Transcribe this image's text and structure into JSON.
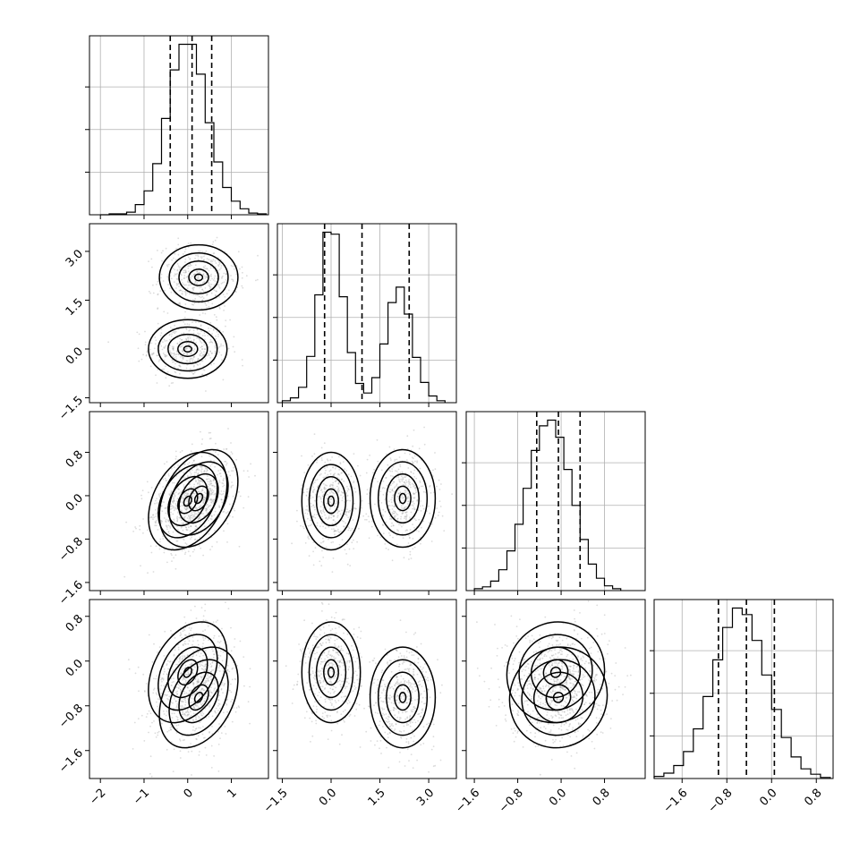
{
  "chart_data": {
    "type": "corner",
    "dimensions": 4,
    "ranges": [
      [
        -2.25,
        1.85
      ],
      [
        -1.65,
        3.85
      ],
      [
        -1.75,
        1.55
      ],
      [
        -2.1,
        1.1
      ]
    ],
    "ticks": [
      {
        "values": [
          -2,
          -1,
          0,
          1
        ],
        "labels": [
          "−2",
          "−1",
          "0",
          "1"
        ]
      },
      {
        "values": [
          -1.5,
          0.0,
          1.5,
          3.0
        ],
        "labels": [
          "−1.5",
          "0.0",
          "1.5",
          "3.0"
        ]
      },
      {
        "values": [
          -1.6,
          -0.8,
          0.0,
          0.8
        ],
        "labels": [
          "−1.6",
          "−0.8",
          "0.0",
          "0.8"
        ]
      },
      {
        "values": [
          -1.6,
          -0.8,
          0.0,
          0.8
        ],
        "labels": [
          "−1.6",
          "−0.8",
          "0.0",
          "0.8"
        ]
      }
    ],
    "quantiles": [
      [
        -0.4,
        0.1,
        0.55
      ],
      [
        -0.2,
        0.95,
        2.4
      ],
      [
        -0.45,
        -0.05,
        0.35
      ],
      [
        -0.95,
        -0.45,
        0.05
      ]
    ],
    "histograms": [
      {
        "edges": [
          -2.0,
          -1.8,
          -1.6,
          -1.4,
          -1.2,
          -1.0,
          -0.8,
          -0.6,
          -0.4,
          -0.2,
          0.0,
          0.2,
          0.4,
          0.6,
          0.8,
          1.0,
          1.2,
          1.4,
          1.6,
          1.8
        ],
        "counts": [
          0,
          1,
          1,
          3,
          12,
          28,
          60,
          113,
          170,
          200,
          200,
          165,
          108,
          62,
          32,
          16,
          7,
          2,
          1
        ]
      },
      {
        "edges": [
          -1.5,
          -1.25,
          -1.0,
          -0.75,
          -0.5,
          -0.25,
          0.0,
          0.25,
          0.5,
          0.75,
          1.0,
          1.25,
          1.5,
          1.75,
          2.0,
          2.25,
          2.5,
          2.75,
          3.0,
          3.25,
          3.5
        ],
        "counts": [
          2,
          5,
          16,
          48,
          112,
          177,
          175,
          110,
          52,
          20,
          10,
          26,
          61,
          104,
          120,
          92,
          47,
          21,
          7,
          2
        ]
      },
      {
        "edges": [
          -1.6,
          -1.45,
          -1.3,
          -1.15,
          -1.0,
          -0.85,
          -0.7,
          -0.55,
          -0.4,
          -0.25,
          -0.1,
          0.05,
          0.2,
          0.35,
          0.5,
          0.65,
          0.8,
          0.95,
          1.1
        ],
        "counts": [
          2,
          4,
          10,
          22,
          42,
          70,
          108,
          148,
          174,
          180,
          162,
          128,
          90,
          54,
          28,
          13,
          5,
          2
        ]
      },
      {
        "edges": [
          -2.1,
          -1.925,
          -1.75,
          -1.575,
          -1.4,
          -1.225,
          -1.05,
          -0.875,
          -0.7,
          -0.525,
          -0.35,
          -0.175,
          0.0,
          0.175,
          0.35,
          0.525,
          0.7,
          0.875,
          1.05
        ],
        "counts": [
          2,
          5,
          12,
          25,
          46,
          76,
          110,
          140,
          158,
          152,
          128,
          96,
          64,
          38,
          20,
          9,
          4,
          1
        ]
      }
    ],
    "components": [
      {
        "weight": 0.5,
        "mean": [
          0.0,
          0.0,
          -0.1,
          -0.2
        ],
        "sd": [
          0.45,
          0.45,
          0.45,
          0.45
        ],
        "corr": [
          [
            0,
            2,
            0.35
          ],
          [
            0,
            3,
            0.35
          ],
          [
            2,
            3,
            0.05
          ]
        ]
      },
      {
        "weight": 0.5,
        "mean": [
          0.25,
          2.2,
          -0.05,
          -0.65
        ],
        "sd": [
          0.45,
          0.5,
          0.45,
          0.45
        ],
        "corr": [
          [
            0,
            2,
            0.35
          ],
          [
            0,
            3,
            0.35
          ],
          [
            2,
            3,
            0.05
          ]
        ]
      }
    ]
  }
}
